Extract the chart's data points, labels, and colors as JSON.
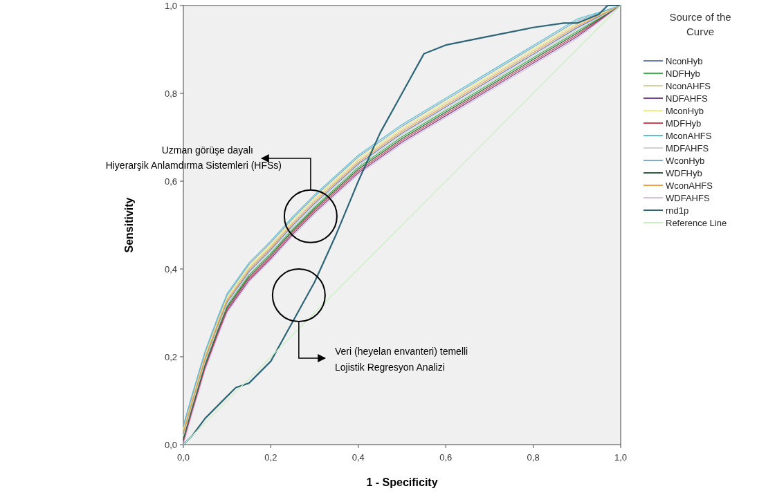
{
  "chart_data": {
    "type": "line",
    "xlabel": "1 - Specificity",
    "ylabel": "Sensitivity",
    "legend_title": "Source of the Curve",
    "legend": "right",
    "grid": false,
    "xlim": [
      0,
      1
    ],
    "ylim": [
      0,
      1
    ],
    "xticks": [
      {
        "value": 0,
        "label": "0,0"
      },
      {
        "value": 0.2,
        "label": "0,2"
      },
      {
        "value": 0.4,
        "label": "0,4"
      },
      {
        "value": 0.6,
        "label": "0,6"
      },
      {
        "value": 0.8,
        "label": "0,8"
      },
      {
        "value": 1,
        "label": "1,0"
      }
    ],
    "yticks": [
      {
        "value": 0,
        "label": "0,0"
      },
      {
        "value": 0.2,
        "label": "0,2"
      },
      {
        "value": 0.4,
        "label": "0,4"
      },
      {
        "value": 0.6,
        "label": "0,6"
      },
      {
        "value": 0.8,
        "label": "0,8"
      },
      {
        "value": 1,
        "label": "1,0"
      }
    ],
    "x": [
      0,
      0.02,
      0.05,
      0.08,
      0.1,
      0.15,
      0.2,
      0.25,
      0.3,
      0.4,
      0.5,
      0.6,
      0.7,
      0.8,
      0.9,
      1
    ],
    "series": [
      {
        "name": "NconHyb",
        "color": "#6a7fc0",
        "values": [
          0.024,
          0.094,
          0.194,
          0.274,
          0.324,
          0.394,
          0.444,
          0.499,
          0.549,
          0.639,
          0.709,
          0.769,
          0.829,
          0.889,
          0.949,
          1
        ]
      },
      {
        "name": "NDFHyb",
        "color": "#3cb44b",
        "values": [
          0.016,
          0.086,
          0.186,
          0.266,
          0.316,
          0.386,
          0.436,
          0.491,
          0.541,
          0.631,
          0.701,
          0.761,
          0.821,
          0.881,
          0.941,
          1
        ]
      },
      {
        "name": "NconAHFS",
        "color": "#d6d0a0",
        "values": [
          0.032,
          0.102,
          0.202,
          0.282,
          0.332,
          0.402,
          0.452,
          0.507,
          0.557,
          0.647,
          0.717,
          0.777,
          0.837,
          0.897,
          0.957,
          1
        ]
      },
      {
        "name": "NDFAHFS",
        "color": "#7d3f8c",
        "values": [
          0.004,
          0.074,
          0.174,
          0.254,
          0.304,
          0.374,
          0.424,
          0.479,
          0.529,
          0.619,
          0.689,
          0.749,
          0.809,
          0.869,
          0.929,
          1
        ]
      },
      {
        "name": "MconHyb",
        "color": "#f0f080",
        "values": [
          0.036,
          0.106,
          0.206,
          0.286,
          0.336,
          0.406,
          0.456,
          0.511,
          0.561,
          0.651,
          0.721,
          0.781,
          0.841,
          0.901,
          0.961,
          1
        ]
      },
      {
        "name": "MDFHyb",
        "color": "#d04050",
        "values": [
          0.008,
          0.078,
          0.178,
          0.258,
          0.308,
          0.378,
          0.428,
          0.483,
          0.533,
          0.623,
          0.693,
          0.753,
          0.813,
          0.873,
          0.933,
          1
        ]
      },
      {
        "name": "MconAHFS",
        "color": "#5cc0d0",
        "values": [
          0.044,
          0.114,
          0.214,
          0.294,
          0.344,
          0.414,
          0.464,
          0.519,
          0.569,
          0.659,
          0.729,
          0.789,
          0.849,
          0.909,
          0.969,
          1
        ]
      },
      {
        "name": "MDFAHFS",
        "color": "#d0d0d0",
        "values": [
          0.02,
          0.09,
          0.19,
          0.27,
          0.32,
          0.39,
          0.44,
          0.495,
          0.545,
          0.635,
          0.705,
          0.765,
          0.825,
          0.885,
          0.945,
          1
        ]
      },
      {
        "name": "WconHyb",
        "color": "#80aad0",
        "values": [
          0.04,
          0.11,
          0.21,
          0.29,
          0.34,
          0.41,
          0.46,
          0.515,
          0.565,
          0.655,
          0.725,
          0.785,
          0.845,
          0.905,
          0.965,
          1
        ]
      },
      {
        "name": "WDFHyb",
        "color": "#2f5f3f",
        "values": [
          0.012,
          0.082,
          0.182,
          0.262,
          0.312,
          0.382,
          0.432,
          0.487,
          0.537,
          0.627,
          0.697,
          0.757,
          0.817,
          0.877,
          0.937,
          1
        ]
      },
      {
        "name": "WconAHFS",
        "color": "#f0a040",
        "values": [
          0.028,
          0.098,
          0.198,
          0.278,
          0.328,
          0.398,
          0.448,
          0.503,
          0.553,
          0.643,
          0.713,
          0.773,
          0.833,
          0.893,
          0.953,
          1
        ]
      },
      {
        "name": "WDFAHFS",
        "color": "#d8c0e8",
        "values": [
          0,
          0.07,
          0.17,
          0.25,
          0.3,
          0.37,
          0.42,
          0.475,
          0.525,
          0.615,
          0.685,
          0.745,
          0.805,
          0.865,
          0.925,
          1
        ]
      },
      {
        "name": "rnd1p",
        "color": "#2c6478",
        "x": [
          0,
          0.02,
          0.05,
          0.1,
          0.12,
          0.15,
          0.2,
          0.25,
          0.3,
          0.35,
          0.4,
          0.45,
          0.5,
          0.55,
          0.6,
          0.7,
          0.8,
          0.87,
          0.9,
          0.95,
          0.97,
          1
        ],
        "values": [
          0,
          0.02,
          0.06,
          0.11,
          0.13,
          0.14,
          0.19,
          0.28,
          0.37,
          0.48,
          0.6,
          0.71,
          0.8,
          0.89,
          0.91,
          0.93,
          0.95,
          0.96,
          0.96,
          0.98,
          1,
          1
        ]
      },
      {
        "name": "Reference Line",
        "color": "#c8f0c0",
        "x": [
          0,
          1
        ],
        "values": [
          0,
          1
        ]
      }
    ],
    "annotations": [
      "Uzman görüşe dayalı\nHiyerarşik Anlamdırma Sistemleri (HFSs)",
      "Veri (heyelan envanteri) temelli\nLojistik Regresyon Analizi"
    ]
  }
}
